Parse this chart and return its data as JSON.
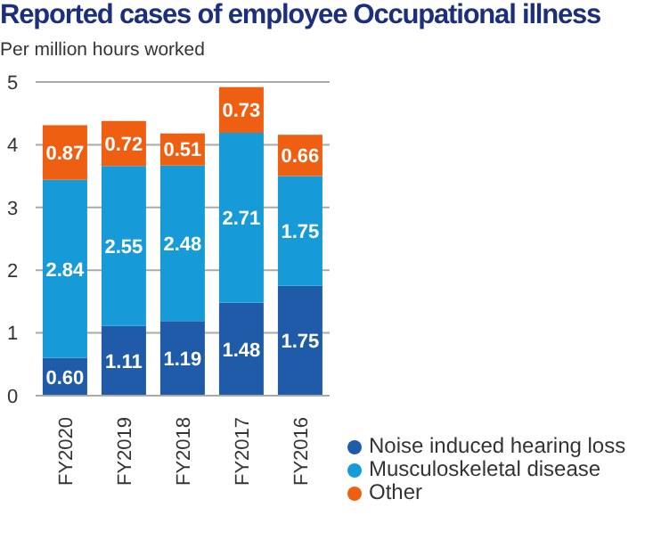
{
  "chart_data": {
    "type": "bar",
    "title": "Reported cases of employee Occupational illness",
    "subtitle": "Per million hours worked",
    "categories": [
      "FY2020",
      "FY2019",
      "FY2018",
      "FY2017",
      "FY2016"
    ],
    "stacked": true,
    "grid": "y",
    "legend": "bottom right",
    "ylim": [
      0,
      5
    ],
    "yticks": [
      0,
      1,
      2,
      3,
      4,
      5
    ],
    "series": [
      {
        "name": "Noise induced hearing loss",
        "color": "#1f5ba8",
        "values": [
          0.6,
          1.11,
          1.19,
          1.48,
          1.75
        ],
        "value_labels": [
          "0.60",
          "1.11",
          "1.19",
          "1.48",
          "1.75"
        ]
      },
      {
        "name": "Musculoskeletal disease",
        "color": "#169bd8",
        "values": [
          2.84,
          2.55,
          2.48,
          2.71,
          1.75
        ],
        "value_labels": [
          "2.84",
          "2.55",
          "2.48",
          "2.71",
          "1.75"
        ]
      },
      {
        "name": "Other",
        "color": "#ee5f12",
        "values": [
          0.87,
          0.72,
          0.51,
          0.73,
          0.66
        ],
        "value_labels": [
          "0.87",
          "0.72",
          "0.51",
          "0.73",
          "0.66"
        ]
      }
    ]
  }
}
